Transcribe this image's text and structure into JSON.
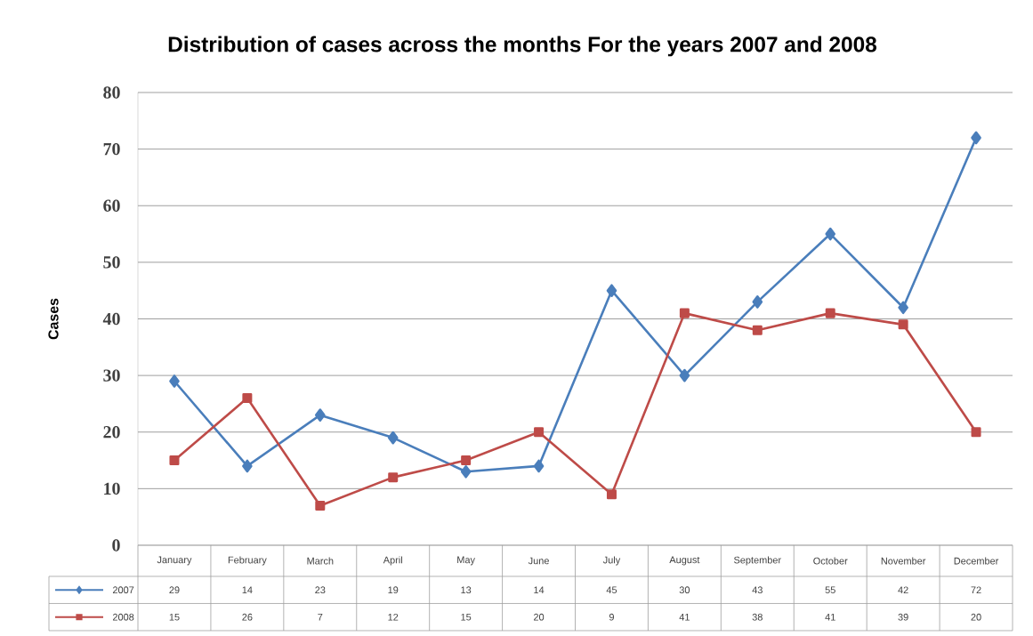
{
  "chart_data": {
    "type": "line",
    "title": "Distribution of cases across the months For the years 2007 and 2008",
    "ylabel": "Cases",
    "categories": [
      "January",
      "February",
      "March",
      "April",
      "May",
      "June",
      "July",
      "August",
      "September",
      "October",
      "November",
      "December"
    ],
    "series": [
      {
        "name": "2007",
        "color": "#4a7ebb",
        "marker": "diamond",
        "values": [
          29,
          14,
          23,
          19,
          13,
          14,
          45,
          30,
          43,
          55,
          42,
          72
        ]
      },
      {
        "name": "2008",
        "color": "#be4b48",
        "marker": "square",
        "values": [
          15,
          26,
          7,
          12,
          15,
          20,
          9,
          41,
          38,
          41,
          39,
          20
        ]
      }
    ],
    "ylim": [
      0,
      80
    ],
    "yticks": [
      0,
      10,
      20,
      30,
      40,
      50,
      60,
      70,
      80
    ],
    "grid": "y",
    "legend": "bottom left",
    "data_labels": true
  }
}
